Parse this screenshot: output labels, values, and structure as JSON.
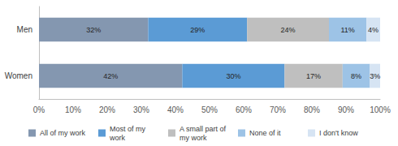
{
  "chart_data": {
    "type": "bar",
    "orientation": "horizontal",
    "stacked": true,
    "data_labels": true,
    "grid": false,
    "legend": "bottom",
    "categories": [
      "Men",
      "Women"
    ],
    "xlim": [
      0,
      100
    ],
    "xticks": [
      {
        "value": 0,
        "label": "0%"
      },
      {
        "value": 10,
        "label": "10%"
      },
      {
        "value": 20,
        "label": "20%"
      },
      {
        "value": 30,
        "label": "30%"
      },
      {
        "value": 40,
        "label": "40%"
      },
      {
        "value": 50,
        "label": "50%"
      },
      {
        "value": 60,
        "label": "60%"
      },
      {
        "value": 70,
        "label": "70%"
      },
      {
        "value": 80,
        "label": "80%"
      },
      {
        "value": 90,
        "label": "90%"
      },
      {
        "value": 100,
        "label": "100%"
      }
    ],
    "series": [
      {
        "name": "All of my work",
        "color": "#8497b0",
        "values": [
          32,
          42
        ],
        "value_labels": [
          "32%",
          "42%"
        ]
      },
      {
        "name": "Most of my work",
        "color": "#5b9bd5",
        "values": [
          29,
          30
        ],
        "value_labels": [
          "29%",
          "30%"
        ]
      },
      {
        "name": "A small part of my work",
        "color": "#bfbfbf",
        "values": [
          24,
          17
        ],
        "value_labels": [
          "24%",
          "17%"
        ]
      },
      {
        "name": "None of it",
        "color": "#9dc3e6",
        "values": [
          11,
          8
        ],
        "value_labels": [
          "11%",
          "8%"
        ]
      },
      {
        "name": "I don't know",
        "color": "#d6e4f3",
        "values": [
          4,
          3
        ],
        "value_labels": [
          "4%",
          "3%"
        ]
      }
    ]
  }
}
